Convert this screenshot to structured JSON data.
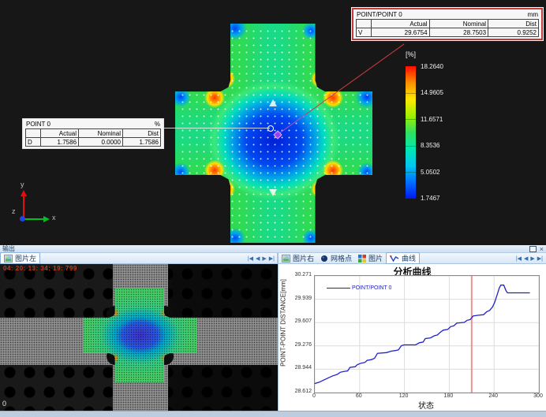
{
  "viewport": {
    "tables": [
      {
        "title": "POINT/POINT 0",
        "unit": "mm",
        "columns": [
          "",
          "Actual",
          "Nominal",
          "Dist"
        ],
        "rows": [
          [
            "V",
            "29.6754",
            "28.7503",
            "0.9252"
          ]
        ]
      },
      {
        "title": "POINT 0",
        "unit": "%",
        "columns": [
          "",
          "Actual",
          "Nominal",
          "Dist"
        ],
        "rows": [
          [
            "D",
            "1.7586",
            "0.0000",
            "1.7586"
          ]
        ]
      }
    ],
    "legend": {
      "unit_label": "[%]",
      "tick_values": [
        "18.2640",
        "14.9605",
        "11.6571",
        "8.3536",
        "5.0502",
        "1.7467"
      ],
      "colors_top_to_bottom": [
        "#ff0c00",
        "#ff9000",
        "#ffe800",
        "#a0f000",
        "#30e060",
        "#00e8b0",
        "#00c8f0",
        "#0070ff",
        "#0018f0"
      ]
    },
    "triad": {
      "x": "x",
      "y": "y",
      "z": "z"
    }
  },
  "output_panel": {
    "title": "输出",
    "close_glyph": "×"
  },
  "left_panel": {
    "tab_label": "图片左",
    "nav": [
      "|◀",
      "◀",
      "▶",
      "▶|"
    ],
    "timestamp": "04: 20: 13: 34: 19: 799",
    "timestamp_color": "#c23c14",
    "frame_label": "0"
  },
  "right_panel": {
    "tabs": [
      "图片右",
      "网格点",
      "图片",
      "曲线"
    ],
    "selected_tab": "曲线",
    "nav": [
      "|◀",
      "◀",
      "▶",
      "▶|"
    ]
  },
  "chart_data": {
    "type": "line",
    "title": "分析曲线",
    "xlabel": "状态",
    "ylabel": "POINT-POINT DISTANCE[mm]",
    "xlim": [
      0,
      300
    ],
    "ylim": [
      28.612,
      30.271
    ],
    "x_ticks": [
      0,
      60,
      120,
      180,
      240,
      300
    ],
    "y_ticks": [
      30.271,
      29.939,
      29.607,
      29.276,
      28.944,
      28.612
    ],
    "grid": true,
    "legend_position": "top-left",
    "cursor_x": 210,
    "cursor_color": "#f09090",
    "series": [
      {
        "name": "POINT/POINT 0",
        "color": "#2222cc",
        "x": [
          0,
          6,
          12,
          18,
          24,
          30,
          34,
          38,
          44,
          47,
          54,
          57,
          62,
          67,
          70,
          76,
          80,
          84,
          96,
          102,
          108,
          112,
          116,
          120,
          135,
          140,
          145,
          148,
          155,
          160,
          164,
          168,
          172,
          178,
          182,
          186,
          190,
          200,
          204,
          208,
          212,
          218,
          226,
          230,
          234,
          238,
          241,
          244,
          247,
          249,
          253,
          256,
          258,
          262,
          288
        ],
        "y": [
          28.74,
          28.76,
          28.79,
          28.82,
          28.85,
          28.87,
          28.9,
          28.91,
          28.92,
          28.97,
          28.98,
          29.01,
          29.03,
          29.04,
          29.07,
          29.08,
          29.1,
          29.17,
          29.18,
          29.2,
          29.21,
          29.22,
          29.28,
          29.29,
          29.29,
          29.32,
          29.33,
          29.38,
          29.39,
          29.42,
          29.43,
          29.47,
          29.5,
          29.51,
          29.55,
          29.56,
          29.6,
          29.61,
          29.64,
          29.65,
          29.7,
          29.71,
          29.72,
          29.76,
          29.78,
          29.83,
          29.9,
          30.0,
          30.1,
          30.14,
          30.14,
          30.06,
          30.03,
          30.03,
          30.03
        ]
      }
    ]
  }
}
